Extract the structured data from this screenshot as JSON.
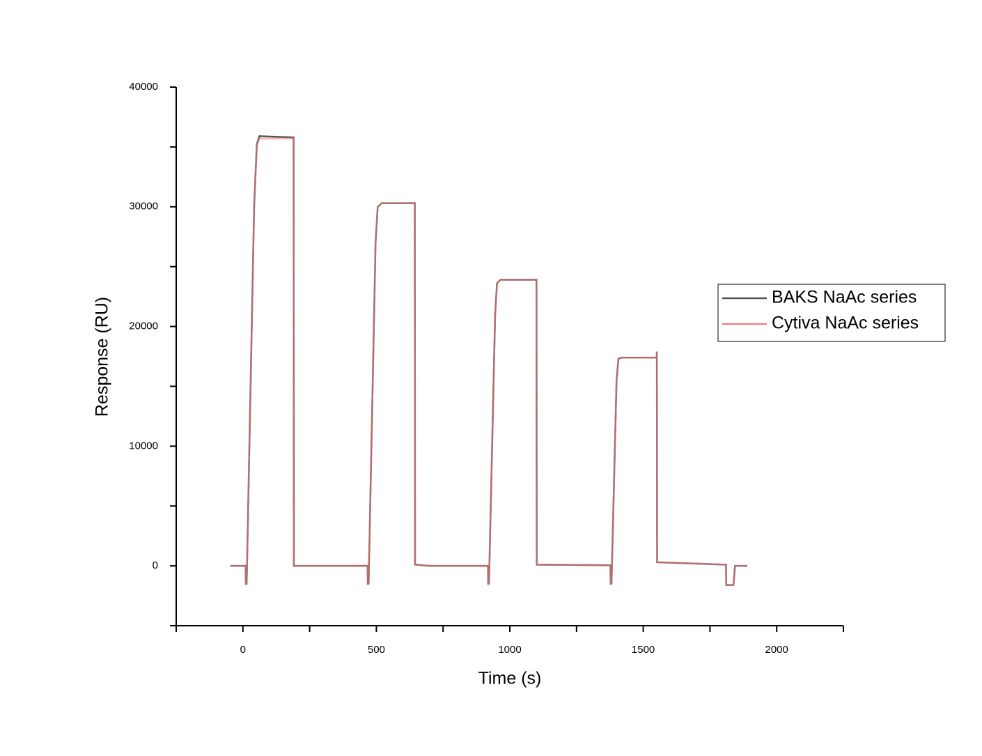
{
  "chart_data": {
    "type": "line",
    "x_label": "Time (s)",
    "y_label": "Response (RU)",
    "x": [
      -47,
      10,
      11,
      14,
      42,
      52,
      62,
      190,
      191,
      467,
      468,
      471,
      497,
      505,
      520,
      644,
      645,
      700,
      918,
      919,
      922,
      945,
      952,
      965,
      1100,
      1101,
      1377,
      1378,
      1381,
      1400,
      1407,
      1418,
      1550,
      1551,
      1552,
      1805,
      1810,
      1811,
      1838,
      1844,
      1890
    ],
    "series": [
      {
        "name": "BAKS NaAc series",
        "color": "#555555",
        "values": [
          0,
          0,
          -1500,
          -1500,
          30000,
          35200,
          35900,
          35800,
          0,
          0,
          -1500,
          -1500,
          27000,
          30000,
          30300,
          30300,
          100,
          0,
          0,
          -1500,
          -1500,
          21000,
          23600,
          23900,
          23900,
          100,
          50,
          -1500,
          -1500,
          15500,
          17300,
          17400,
          17400,
          17900,
          300,
          100,
          100,
          -1600,
          -1600,
          0,
          0
        ]
      },
      {
        "name": "Cytiva NaAc series",
        "color": "#f08080",
        "values": [
          0,
          0,
          -1500,
          -1500,
          30000,
          35100,
          35700,
          35700,
          0,
          0,
          -1500,
          -1500,
          27000,
          30000,
          30300,
          30300,
          100,
          0,
          0,
          -1500,
          -1500,
          21000,
          23600,
          23900,
          23900,
          100,
          50,
          -1500,
          -1500,
          15500,
          17300,
          17400,
          17400,
          17900,
          300,
          100,
          100,
          -1600,
          -1600,
          0,
          0
        ]
      }
    ],
    "xlim": [
      -250,
      2250
    ],
    "xticks": [
      0,
      500,
      1000,
      1500,
      2000
    ],
    "xminorticks": [
      -250,
      250,
      750,
      1250,
      1750,
      2250
    ],
    "ylim": [
      -5000,
      40000
    ],
    "yticks": [
      0,
      10000,
      20000,
      30000,
      40000
    ],
    "yminorticks": [
      -5000,
      5000,
      15000,
      25000,
      35000
    ],
    "grid": false,
    "legend": "right"
  }
}
